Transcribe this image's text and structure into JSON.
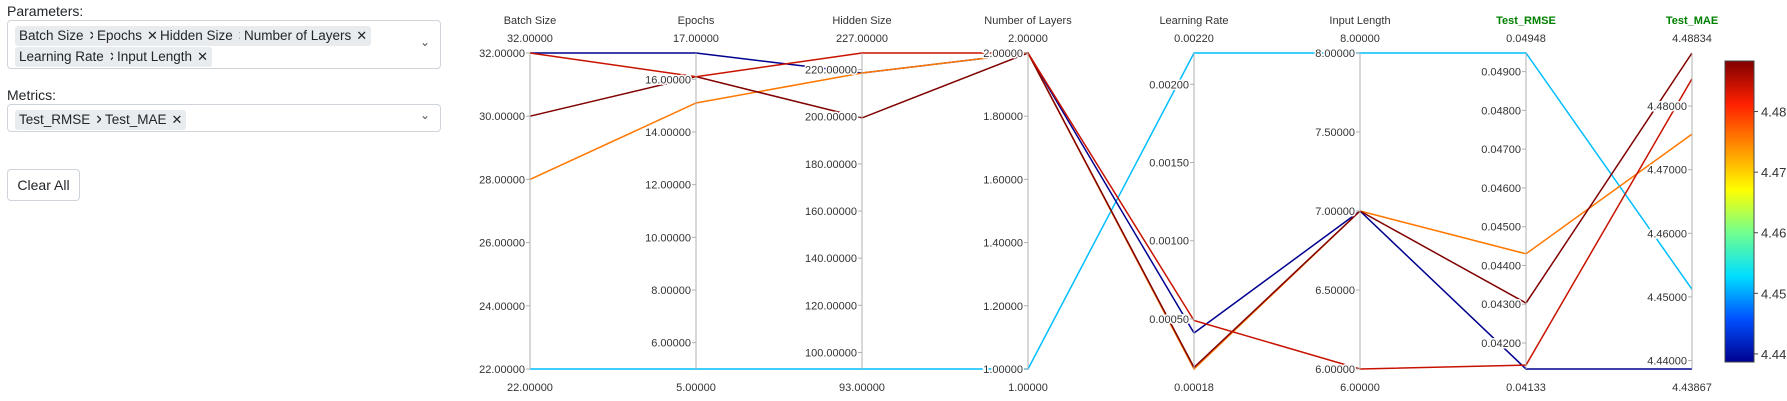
{
  "panel": {
    "parameters_label": "Parameters:",
    "parameters": [
      "Batch Size",
      "Epochs",
      "Hidden Size",
      "Number of Layers",
      "Learning Rate",
      "Input Length"
    ],
    "metrics_label": "Metrics:",
    "metrics": [
      "Test_RMSE",
      "Test_MAE"
    ],
    "clear_button": "Clear All",
    "chip_remove_icon": "close-icon",
    "dropdown_icon": "chevron-down-icon"
  },
  "colors": {
    "axis_title": "#333333",
    "metric_axis_title": "#008000",
    "colorscale": [
      "#00008f",
      "#0050ff",
      "#00dfff",
      "#70ff8f",
      "#ffff00",
      "#ff8f00",
      "#ff2000",
      "#800000"
    ]
  },
  "chart_data": {
    "type": "parallel_coordinates",
    "dimensions": [
      {
        "name": "Batch Size",
        "is_metric": false,
        "range": [
          22,
          32
        ],
        "top_label": "32.00000",
        "bottom_label": "22.00000",
        "ticks": [
          {
            "v": 32,
            "t": "32.00000"
          },
          {
            "v": 30,
            "t": "30.00000"
          },
          {
            "v": 28,
            "t": "28.00000"
          },
          {
            "v": 26,
            "t": "26.00000"
          },
          {
            "v": 24,
            "t": "24.00000"
          },
          {
            "v": 22,
            "t": "22.00000"
          }
        ]
      },
      {
        "name": "Epochs",
        "is_metric": false,
        "range": [
          5,
          17
        ],
        "top_label": "17.00000",
        "bottom_label": "5.00000",
        "ticks": [
          {
            "v": 16,
            "t": "16.00000"
          },
          {
            "v": 14,
            "t": "14.00000"
          },
          {
            "v": 12,
            "t": "12.00000"
          },
          {
            "v": 10,
            "t": "10.00000"
          },
          {
            "v": 8,
            "t": "8.00000"
          },
          {
            "v": 6,
            "t": "6.00000"
          }
        ]
      },
      {
        "name": "Hidden Size",
        "is_metric": false,
        "range": [
          93,
          227
        ],
        "top_label": "227.00000",
        "bottom_label": "93.00000",
        "ticks": [
          {
            "v": 220,
            "t": "220.00000"
          },
          {
            "v": 200,
            "t": "200.00000"
          },
          {
            "v": 180,
            "t": "180.00000"
          },
          {
            "v": 160,
            "t": "160.00000"
          },
          {
            "v": 140,
            "t": "140.00000"
          },
          {
            "v": 120,
            "t": "120.00000"
          },
          {
            "v": 100,
            "t": "100.00000"
          }
        ]
      },
      {
        "name": "Number of Layers",
        "is_metric": false,
        "range": [
          1,
          2
        ],
        "top_label": "2.00000",
        "bottom_label": "1.00000",
        "ticks": [
          {
            "v": 2,
            "t": "2.00000"
          },
          {
            "v": 1.8,
            "t": "1.80000"
          },
          {
            "v": 1.6,
            "t": "1.60000"
          },
          {
            "v": 1.4,
            "t": "1.40000"
          },
          {
            "v": 1.2,
            "t": "1.20000"
          },
          {
            "v": 1,
            "t": "1.00000"
          }
        ]
      },
      {
        "name": "Learning Rate",
        "is_metric": false,
        "range": [
          0.00018,
          0.0022
        ],
        "top_label": "0.00220",
        "bottom_label": "0.00018",
        "ticks": [
          {
            "v": 0.002,
            "t": "0.00200"
          },
          {
            "v": 0.0015,
            "t": "0.00150"
          },
          {
            "v": 0.001,
            "t": "0.00100"
          },
          {
            "v": 0.0005,
            "t": "0.00050"
          }
        ]
      },
      {
        "name": "Input Length",
        "is_metric": false,
        "range": [
          6,
          8
        ],
        "top_label": "8.00000",
        "bottom_label": "6.00000",
        "ticks": [
          {
            "v": 8,
            "t": "8.00000"
          },
          {
            "v": 7.5,
            "t": "7.50000"
          },
          {
            "v": 7,
            "t": "7.00000"
          },
          {
            "v": 6.5,
            "t": "6.50000"
          },
          {
            "v": 6,
            "t": "6.00000"
          }
        ]
      },
      {
        "name": "Test_RMSE",
        "is_metric": true,
        "range": [
          0.04133,
          0.04948
        ],
        "top_label": "0.04948",
        "bottom_label": "0.04133",
        "ticks": [
          {
            "v": 0.049,
            "t": "0.04900"
          },
          {
            "v": 0.048,
            "t": "0.04800"
          },
          {
            "v": 0.047,
            "t": "0.04700"
          },
          {
            "v": 0.046,
            "t": "0.04600"
          },
          {
            "v": 0.045,
            "t": "0.04500"
          },
          {
            "v": 0.044,
            "t": "0.04400"
          },
          {
            "v": 0.043,
            "t": "0.04300"
          },
          {
            "v": 0.042,
            "t": "0.04200"
          }
        ]
      },
      {
        "name": "Test_MAE",
        "is_metric": true,
        "range": [
          4.43867,
          4.48834
        ],
        "top_label": "4.48834",
        "bottom_label": "4.43867",
        "ticks": [
          {
            "v": 4.48,
            "t": "4.48000"
          },
          {
            "v": 4.47,
            "t": "4.47000"
          },
          {
            "v": 4.46,
            "t": "4.46000"
          },
          {
            "v": 4.45,
            "t": "4.45000"
          },
          {
            "v": 4.44,
            "t": "4.44000"
          }
        ]
      }
    ],
    "lines": [
      {
        "values": [
          22,
          5,
          93,
          1,
          0.0022,
          8,
          0.04948,
          4.4512
        ]
      },
      {
        "values": [
          32,
          17,
          218.5,
          2,
          0.00041,
          7,
          0.04133,
          4.43867
        ]
      },
      {
        "values": [
          28,
          15.1,
          218.5,
          2,
          0.00018,
          7,
          0.0443,
          4.4756
        ]
      },
      {
        "values": [
          30,
          16.1,
          199.5,
          2,
          0.00019,
          7,
          0.04303,
          4.48834
        ]
      },
      {
        "values": [
          32,
          16.1,
          227,
          2,
          0.00049,
          6,
          0.04143,
          4.4843
        ]
      }
    ],
    "colorbar": {
      "range": [
        4.43867,
        4.48834
      ],
      "ticks": [
        {
          "v": 4.48,
          "t": "4.48"
        },
        {
          "v": 4.47,
          "t": "4.47"
        },
        {
          "v": 4.46,
          "t": "4.46"
        },
        {
          "v": 4.45,
          "t": "4.45"
        },
        {
          "v": 4.44,
          "t": "4.44"
        }
      ]
    }
  }
}
